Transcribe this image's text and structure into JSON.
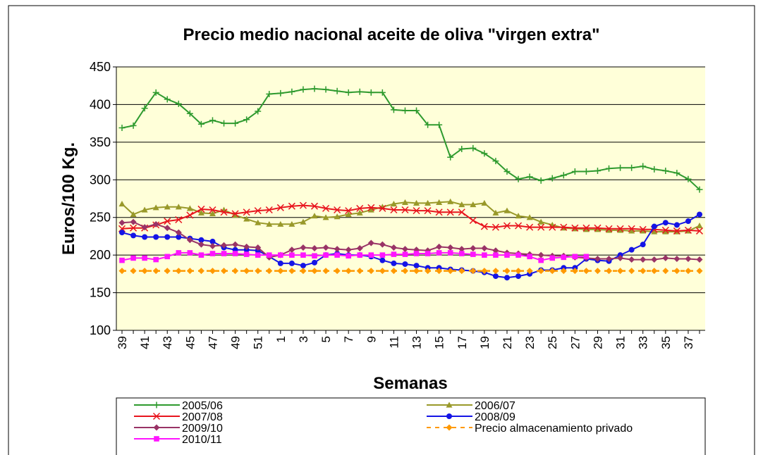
{
  "chart_data": {
    "type": "line",
    "title": "Precio medio nacional aceite de oliva \"virgen extra\"",
    "x_label": "Semanas",
    "y_label": "Euros/100 Kg.",
    "categories": [
      "39",
      null,
      "41",
      null,
      "43",
      null,
      "45",
      null,
      "47",
      null,
      "49",
      null,
      "51",
      null,
      "1",
      null,
      "3",
      null,
      "5",
      null,
      "7",
      null,
      "9",
      null,
      "11",
      null,
      "13",
      null,
      "15",
      null,
      "17",
      null,
      "19",
      null,
      "21",
      null,
      "23",
      null,
      "25",
      null,
      "27",
      null,
      "29",
      null,
      "31",
      null,
      "33",
      null,
      "35",
      null,
      "37",
      null
    ],
    "ylim": [
      100,
      450
    ],
    "yticks": [
      100,
      150,
      200,
      250,
      300,
      350,
      400,
      450
    ],
    "grid": true,
    "legend": "bottom",
    "series": [
      {
        "name": "2005/06",
        "color": "#2e9a2e",
        "marker": "plus",
        "values": [
          369,
          372,
          395,
          416,
          407,
          401,
          388,
          374,
          379,
          375,
          375,
          380,
          391,
          414,
          415,
          417,
          420,
          421,
          420,
          418,
          416,
          417,
          416,
          416,
          393,
          392,
          392,
          373,
          373,
          330,
          341,
          342,
          335,
          325,
          311,
          301,
          304,
          299,
          302,
          306,
          311,
          311,
          312,
          315,
          316,
          316,
          318,
          314,
          312,
          309,
          301,
          287
        ]
      },
      {
        "name": "2006/07",
        "color": "#99992a",
        "marker": "triangle",
        "values": [
          268,
          254,
          260,
          263,
          264,
          264,
          262,
          256,
          255,
          260,
          253,
          248,
          243,
          241,
          241,
          241,
          244,
          252,
          250,
          251,
          254,
          256,
          260,
          264,
          268,
          270,
          269,
          269,
          270,
          271,
          267,
          267,
          269,
          256,
          259,
          252,
          250,
          244,
          240,
          236,
          235,
          234,
          234,
          233,
          233,
          232,
          232,
          231,
          231,
          231,
          232,
          239
        ]
      },
      {
        "name": "2007/08",
        "color": "#e8141e",
        "marker": "x",
        "values": [
          235,
          236,
          236,
          240,
          245,
          247,
          253,
          261,
          260,
          257,
          255,
          257,
          259,
          260,
          263,
          265,
          266,
          265,
          262,
          260,
          259,
          262,
          263,
          262,
          260,
          260,
          259,
          259,
          257,
          257,
          257,
          246,
          238,
          237,
          239,
          239,
          237,
          237,
          237,
          237,
          236,
          236,
          236,
          235,
          235,
          235,
          234,
          234,
          233,
          232,
          233,
          232
        ]
      },
      {
        "name": "2008/09",
        "color": "#1414e6",
        "marker": "circle",
        "values": [
          230,
          226,
          224,
          224,
          224,
          224,
          222,
          220,
          218,
          210,
          207,
          207,
          206,
          198,
          189,
          189,
          186,
          190,
          200,
          202,
          200,
          200,
          198,
          193,
          189,
          188,
          186,
          183,
          183,
          181,
          180,
          179,
          177,
          172,
          170,
          172,
          175,
          180,
          180,
          183,
          183,
          195,
          193,
          192,
          200,
          207,
          214,
          238,
          243,
          240,
          245,
          254
        ]
      },
      {
        "name": "2009/10",
        "color": "#993366",
        "marker": "diamond",
        "values": [
          243,
          244,
          237,
          241,
          236,
          230,
          220,
          214,
          212,
          213,
          214,
          211,
          210,
          197,
          200,
          207,
          210,
          209,
          210,
          208,
          207,
          209,
          216,
          214,
          210,
          208,
          207,
          206,
          211,
          210,
          208,
          209,
          209,
          206,
          203,
          202,
          201,
          200,
          199,
          199,
          197,
          196,
          195,
          195,
          196,
          194,
          194,
          194,
          196,
          195,
          195,
          194
        ]
      },
      {
        "name": "Precio almacenamiento privado",
        "color": "#ff9900",
        "marker": "diamond",
        "line_style": "dashed",
        "values": [
          179,
          179,
          179,
          179,
          179,
          179,
          179,
          179,
          179,
          179,
          179,
          179,
          179,
          179,
          179,
          179,
          179,
          179,
          179,
          179,
          179,
          179,
          179,
          179,
          179,
          179,
          179,
          179,
          179,
          179,
          179,
          179,
          179,
          179,
          179,
          179,
          179,
          179,
          179,
          179,
          179,
          179,
          179,
          179,
          179,
          179,
          179,
          179,
          179,
          179,
          179,
          179
        ]
      },
      {
        "name": "2010/11",
        "color": "#ff14ff",
        "marker": "square",
        "values": [
          193,
          196,
          196,
          194,
          198,
          203,
          203,
          200,
          202,
          202,
          202,
          201,
          200,
          200,
          200,
          200,
          200,
          199,
          200,
          200,
          199,
          200,
          200,
          200,
          201,
          201,
          202,
          202,
          203,
          203,
          202,
          201,
          200,
          200,
          200,
          200,
          198,
          193,
          196,
          197,
          198,
          198,
          null,
          null,
          null,
          null,
          null,
          null,
          null,
          null,
          null,
          null
        ]
      }
    ]
  }
}
